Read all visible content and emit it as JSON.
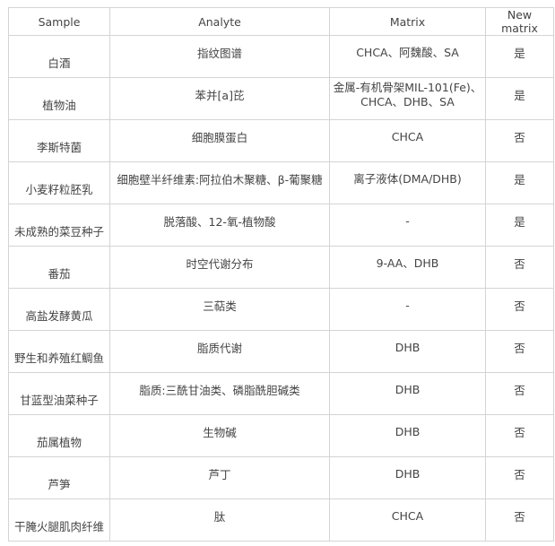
{
  "table": {
    "headers": [
      "Sample",
      "Analyte",
      "Matrix",
      "New matrix"
    ],
    "rows": [
      {
        "sample": "白酒",
        "analyte": "指纹图谱",
        "matrix": "CHCA、阿魏酸、SA",
        "new_matrix": "是"
      },
      {
        "sample": "植物油",
        "analyte": "苯并[a]芘",
        "matrix": "金属-有机骨架MIL-101(Fe)、CHCA、DHB、SA",
        "new_matrix": "是"
      },
      {
        "sample": "李斯特菌",
        "analyte": "细胞膜蛋白",
        "matrix": "CHCA",
        "new_matrix": "否"
      },
      {
        "sample": "小麦籽粒胚乳",
        "analyte": "细胞壁半纤维素:阿拉伯木聚糖、β-葡聚糖",
        "matrix": "离子液体(DMA/DHB)",
        "new_matrix": "是"
      },
      {
        "sample": "未成熟的菜豆种子",
        "analyte": "脱落酸、12-氧-植物酸",
        "matrix": "-",
        "new_matrix": "是"
      },
      {
        "sample": "番茄",
        "analyte": "时空代谢分布",
        "matrix": "9-AA、DHB",
        "new_matrix": "否"
      },
      {
        "sample": "高盐发酵黄瓜",
        "analyte": "三萜类",
        "matrix": "-",
        "new_matrix": "否"
      },
      {
        "sample": "野生和养殖红鲷鱼",
        "analyte": "脂质代谢",
        "matrix": "DHB",
        "new_matrix": "否"
      },
      {
        "sample": "甘蓝型油菜种子",
        "analyte": "脂质:三酰甘油类、磷脂酰胆碱类",
        "matrix": "DHB",
        "new_matrix": "否"
      },
      {
        "sample": "茄属植物",
        "analyte": "生物碱",
        "matrix": "DHB",
        "new_matrix": "否"
      },
      {
        "sample": "芦笋",
        "analyte": "芦丁",
        "matrix": "DHB",
        "new_matrix": "否"
      },
      {
        "sample": "干腌火腿肌肉纤维",
        "analyte": "肽",
        "matrix": "CHCA",
        "new_matrix": "否"
      }
    ]
  }
}
